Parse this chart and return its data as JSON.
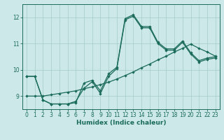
{
  "xlabel": "Humidex (Indice chaleur)",
  "ylabel": "",
  "background_color": "#cce8e8",
  "grid_color": "#aacfcf",
  "line_color": "#1a6b5a",
  "xlim": [
    -0.5,
    23.5
  ],
  "ylim": [
    8.5,
    12.5
  ],
  "yticks": [
    9,
    10,
    11,
    12
  ],
  "xticks": [
    0,
    1,
    2,
    3,
    4,
    5,
    6,
    7,
    8,
    9,
    10,
    11,
    12,
    13,
    14,
    15,
    16,
    17,
    18,
    19,
    20,
    21,
    22,
    23
  ],
  "line1_x": [
    0,
    1,
    2,
    3,
    4,
    5,
    6,
    7,
    8,
    9,
    10,
    11,
    12,
    13,
    14,
    15,
    16,
    17,
    18,
    19,
    20,
    21,
    22,
    23
  ],
  "line1_y": [
    9.75,
    9.75,
    8.85,
    8.7,
    8.7,
    8.7,
    8.75,
    9.5,
    9.6,
    9.2,
    9.85,
    10.1,
    11.95,
    12.1,
    11.65,
    11.65,
    11.05,
    10.8,
    10.8,
    11.1,
    10.65,
    10.35,
    10.45,
    10.5
  ],
  "line2_x": [
    0,
    1,
    2,
    3,
    4,
    5,
    6,
    7,
    8,
    9,
    10,
    11,
    12,
    13,
    14,
    15,
    16,
    17,
    18,
    19,
    20,
    21,
    22,
    23
  ],
  "line2_y": [
    9.75,
    9.75,
    8.85,
    8.7,
    8.7,
    8.7,
    8.8,
    9.3,
    9.55,
    9.1,
    9.75,
    10.05,
    11.9,
    12.05,
    11.6,
    11.6,
    11.0,
    10.75,
    10.75,
    11.05,
    10.6,
    10.3,
    10.4,
    10.45
  ],
  "line3_x": [
    0,
    1,
    2,
    3,
    4,
    5,
    6,
    7,
    8,
    9,
    10,
    11,
    12,
    13,
    14,
    15,
    16,
    17,
    18,
    19,
    20,
    21,
    22,
    23
  ],
  "line3_y": [
    9.0,
    9.0,
    9.0,
    9.05,
    9.1,
    9.15,
    9.2,
    9.28,
    9.35,
    9.44,
    9.53,
    9.65,
    9.78,
    9.92,
    10.08,
    10.22,
    10.38,
    10.52,
    10.68,
    10.82,
    10.98,
    10.82,
    10.68,
    10.52
  ]
}
